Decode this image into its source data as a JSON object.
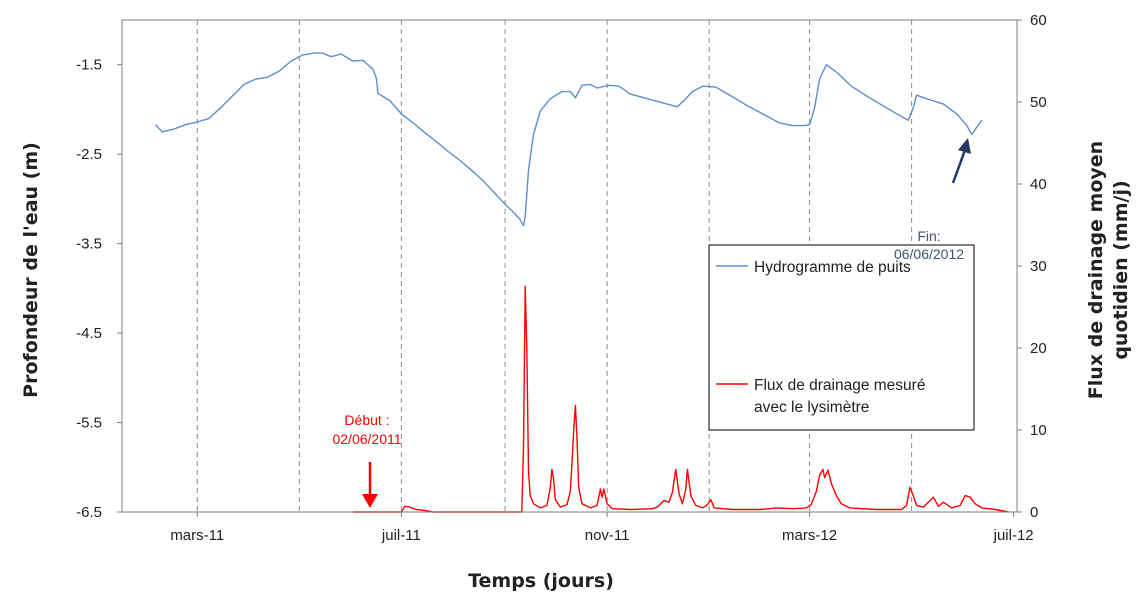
{
  "chart_data": {
    "type": "line",
    "xlabel": "Temps (jours)",
    "ylabel_left": "Profondeur de  l'eau (m)",
    "ylabel_right_line1": "Flux de drainage moyen",
    "ylabel_right_line2": "quotidien (mm/j)",
    "x_tick_labels": [
      "mars-11",
      "juil-11",
      "nov-11",
      "mars-12",
      "juil-12"
    ],
    "x_tick_dates": [
      "2011-03-01",
      "2011-07-01",
      "2011-11-01",
      "2012-03-01",
      "2012-07-01"
    ],
    "xlim": [
      "2011-01-15",
      "2012-07-03"
    ],
    "y_left": {
      "lim": [
        -6.5,
        -1.0
      ],
      "ticks": [
        "-1.5",
        "-2.5",
        "-3.5",
        "-4.5",
        "-5.5",
        "-6.5"
      ],
      "tick_values": [
        -1.5,
        -2.5,
        -3.5,
        -4.5,
        -5.5,
        -6.5
      ]
    },
    "y_right": {
      "lim": [
        0,
        60
      ],
      "ticks": [
        "0",
        "10",
        "20",
        "30",
        "40",
        "50",
        "60"
      ],
      "tick_values": [
        0,
        10,
        20,
        30,
        40,
        50,
        60
      ]
    },
    "grid_dates": [
      "2011-03-01",
      "2011-05-01",
      "2011-07-01",
      "2011-09-01",
      "2011-11-01",
      "2012-01-01",
      "2012-03-01",
      "2012-05-01"
    ],
    "legend": {
      "placement": "center-right",
      "entries": [
        {
          "label_lines": [
            "Hydrogramme de puits"
          ],
          "color": "#5b8fd0"
        },
        {
          "label_lines": [
            "Flux de drainage mesuré",
            "avec le lysimètre"
          ],
          "color": "#ff0000"
        }
      ]
    },
    "annotations": [
      {
        "lines": [
          "Début :",
          "02/06/2011"
        ],
        "color": "#ff0000",
        "date": "2011-06-02"
      },
      {
        "lines": [
          "Fin:",
          "06/06/2012"
        ],
        "color": "#44546a",
        "date": "2012-06-06"
      }
    ],
    "series": [
      {
        "name": "Hydrogramme de puits",
        "axis": "left",
        "color": "#5b8fd0",
        "points": [
          [
            "2011-02-04",
            -2.17
          ],
          [
            "2011-02-08",
            -2.25
          ],
          [
            "2011-02-15",
            -2.22
          ],
          [
            "2011-02-22",
            -2.17
          ],
          [
            "2011-03-01",
            -2.14
          ],
          [
            "2011-03-08",
            -2.1
          ],
          [
            "2011-03-15",
            -1.98
          ],
          [
            "2011-03-22",
            -1.85
          ],
          [
            "2011-03-29",
            -1.72
          ],
          [
            "2011-04-05",
            -1.66
          ],
          [
            "2011-04-12",
            -1.64
          ],
          [
            "2011-04-19",
            -1.57
          ],
          [
            "2011-04-26",
            -1.46
          ],
          [
            "2011-05-03",
            -1.39
          ],
          [
            "2011-05-10",
            -1.37
          ],
          [
            "2011-05-15",
            -1.37
          ],
          [
            "2011-05-20",
            -1.41
          ],
          [
            "2011-05-26",
            -1.38
          ],
          [
            "2011-06-02",
            -1.46
          ],
          [
            "2011-06-08",
            -1.45
          ],
          [
            "2011-06-14",
            -1.55
          ],
          [
            "2011-06-16",
            -1.65
          ],
          [
            "2011-06-17",
            -1.82
          ],
          [
            "2011-06-24",
            -1.9
          ],
          [
            "2011-07-01",
            -2.05
          ],
          [
            "2011-07-08",
            -2.15
          ],
          [
            "2011-07-15",
            -2.26
          ],
          [
            "2011-07-22",
            -2.36
          ],
          [
            "2011-07-29",
            -2.47
          ],
          [
            "2011-08-05",
            -2.57
          ],
          [
            "2011-08-12",
            -2.68
          ],
          [
            "2011-08-19",
            -2.8
          ],
          [
            "2011-08-26",
            -2.94
          ],
          [
            "2011-09-01",
            -3.06
          ],
          [
            "2011-09-06",
            -3.15
          ],
          [
            "2011-09-10",
            -3.23
          ],
          [
            "2011-09-12",
            -3.3
          ],
          [
            "2011-09-13",
            -3.2
          ],
          [
            "2011-09-15",
            -2.68
          ],
          [
            "2011-09-18",
            -2.28
          ],
          [
            "2011-09-22",
            -2.02
          ],
          [
            "2011-09-28",
            -1.88
          ],
          [
            "2011-10-05",
            -1.8
          ],
          [
            "2011-10-10",
            -1.8
          ],
          [
            "2011-10-13",
            -1.87
          ],
          [
            "2011-10-17",
            -1.73
          ],
          [
            "2011-10-22",
            -1.72
          ],
          [
            "2011-10-26",
            -1.76
          ],
          [
            "2011-11-02",
            -1.73
          ],
          [
            "2011-11-08",
            -1.74
          ],
          [
            "2011-11-15",
            -1.83
          ],
          [
            "2011-11-25",
            -1.88
          ],
          [
            "2011-12-05",
            -1.93
          ],
          [
            "2011-12-13",
            -1.97
          ],
          [
            "2011-12-18",
            -1.88
          ],
          [
            "2011-12-22",
            -1.8
          ],
          [
            "2011-12-28",
            -1.74
          ],
          [
            "2012-01-05",
            -1.75
          ],
          [
            "2012-01-15",
            -1.86
          ],
          [
            "2012-01-25",
            -1.97
          ],
          [
            "2012-02-04",
            -2.07
          ],
          [
            "2012-02-12",
            -2.15
          ],
          [
            "2012-02-20",
            -2.18
          ],
          [
            "2012-02-27",
            -2.18
          ],
          [
            "2012-03-01",
            -2.17
          ],
          [
            "2012-03-04",
            -1.98
          ],
          [
            "2012-03-07",
            -1.66
          ],
          [
            "2012-03-11",
            -1.5
          ],
          [
            "2012-03-17",
            -1.58
          ],
          [
            "2012-03-26",
            -1.74
          ],
          [
            "2012-04-05",
            -1.86
          ],
          [
            "2012-04-15",
            -1.97
          ],
          [
            "2012-04-25",
            -2.08
          ],
          [
            "2012-04-29",
            -2.12
          ],
          [
            "2012-05-02",
            -1.98
          ],
          [
            "2012-05-04",
            -1.84
          ],
          [
            "2012-05-10",
            -1.88
          ],
          [
            "2012-05-20",
            -1.94
          ],
          [
            "2012-05-28",
            -2.05
          ],
          [
            "2012-06-03",
            -2.18
          ],
          [
            "2012-06-06",
            -2.28
          ],
          [
            "2012-06-10",
            -2.17
          ],
          [
            "2012-06-12",
            -2.12
          ]
        ]
      },
      {
        "name": "Flux de drainage mesuré avec le lysimètre",
        "axis": "right",
        "color": "#ff0000",
        "points": [
          [
            "2011-06-02",
            0
          ],
          [
            "2011-06-25",
            0
          ],
          [
            "2011-07-01",
            0
          ],
          [
            "2011-07-03",
            0.7
          ],
          [
            "2011-07-06",
            0.6
          ],
          [
            "2011-07-10",
            0.3
          ],
          [
            "2011-07-15",
            0.2
          ],
          [
            "2011-07-20",
            0
          ],
          [
            "2011-08-01",
            0
          ],
          [
            "2011-08-20",
            0
          ],
          [
            "2011-09-05",
            0
          ],
          [
            "2011-09-11",
            0
          ],
          [
            "2011-09-12",
            8
          ],
          [
            "2011-09-13",
            27.5
          ],
          [
            "2011-09-14",
            20
          ],
          [
            "2011-09-15",
            5
          ],
          [
            "2011-09-16",
            2
          ],
          [
            "2011-09-18",
            1
          ],
          [
            "2011-09-22",
            0.5
          ],
          [
            "2011-09-26",
            0.8
          ],
          [
            "2011-09-28",
            3
          ],
          [
            "2011-09-29",
            5.2
          ],
          [
            "2011-09-30",
            4
          ],
          [
            "2011-10-01",
            1.5
          ],
          [
            "2011-10-04",
            0.6
          ],
          [
            "2011-10-08",
            0.9
          ],
          [
            "2011-10-10",
            2.5
          ],
          [
            "2011-10-11",
            6
          ],
          [
            "2011-10-12",
            10
          ],
          [
            "2011-10-13",
            13
          ],
          [
            "2011-10-14",
            9
          ],
          [
            "2011-10-15",
            3
          ],
          [
            "2011-10-17",
            1
          ],
          [
            "2011-10-22",
            0.5
          ],
          [
            "2011-10-26",
            0.8
          ],
          [
            "2011-10-28",
            2.8
          ],
          [
            "2011-10-29",
            1.8
          ],
          [
            "2011-10-30",
            2.8
          ],
          [
            "2011-11-01",
            1
          ],
          [
            "2011-11-04",
            0.4
          ],
          [
            "2011-11-15",
            0.3
          ],
          [
            "2011-11-28",
            0.4
          ],
          [
            "2011-12-01",
            0.6
          ],
          [
            "2011-12-05",
            1.4
          ],
          [
            "2011-12-08",
            1.2
          ],
          [
            "2011-12-10",
            2.4
          ],
          [
            "2011-12-12",
            5.2
          ],
          [
            "2011-12-14",
            2.2
          ],
          [
            "2011-12-16",
            1
          ],
          [
            "2011-12-18",
            2.8
          ],
          [
            "2011-12-19",
            5.2
          ],
          [
            "2011-12-21",
            2
          ],
          [
            "2011-12-24",
            0.8
          ],
          [
            "2011-12-28",
            0.5
          ],
          [
            "2011-12-31",
            0.9
          ],
          [
            "2012-01-02",
            1.5
          ],
          [
            "2012-01-04",
            0.5
          ],
          [
            "2012-01-15",
            0.3
          ],
          [
            "2012-02-01",
            0.3
          ],
          [
            "2012-02-10",
            0.5
          ],
          [
            "2012-02-20",
            0.4
          ],
          [
            "2012-02-28",
            0.5
          ],
          [
            "2012-03-02",
            0.9
          ],
          [
            "2012-03-05",
            2.5
          ],
          [
            "2012-03-07",
            4.5
          ],
          [
            "2012-03-09",
            5.2
          ],
          [
            "2012-03-10",
            4.2
          ],
          [
            "2012-03-12",
            5.1
          ],
          [
            "2012-03-14",
            3.5
          ],
          [
            "2012-03-17",
            2
          ],
          [
            "2012-03-20",
            1
          ],
          [
            "2012-03-25",
            0.5
          ],
          [
            "2012-04-10",
            0.3
          ],
          [
            "2012-04-25",
            0.3
          ],
          [
            "2012-04-28",
            0.8
          ],
          [
            "2012-04-30",
            3
          ],
          [
            "2012-05-02",
            2
          ],
          [
            "2012-05-04",
            0.8
          ],
          [
            "2012-05-08",
            0.6
          ],
          [
            "2012-05-11",
            1.2
          ],
          [
            "2012-05-14",
            1.8
          ],
          [
            "2012-05-17",
            0.7
          ],
          [
            "2012-05-20",
            1.2
          ],
          [
            "2012-05-25",
            0.5
          ],
          [
            "2012-05-30",
            0.8
          ],
          [
            "2012-06-02",
            2
          ],
          [
            "2012-06-05",
            1.8
          ],
          [
            "2012-06-08",
            1
          ],
          [
            "2012-06-12",
            0.5
          ],
          [
            "2012-06-20",
            0.3
          ],
          [
            "2012-06-28",
            0
          ]
        ]
      }
    ]
  }
}
